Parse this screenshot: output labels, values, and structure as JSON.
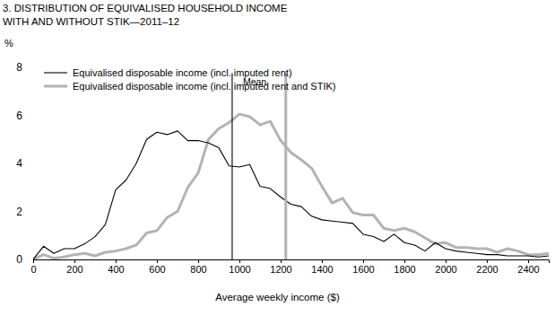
{
  "chart_data": {
    "type": "line",
    "title": [
      "3. DISTRIBUTION OF EQUIVALISED HOUSEHOLD INCOME",
      "WITH AND WITHOUT STIK—2011–12"
    ],
    "x_label": "Average weekly income ($)",
    "y_label": "%",
    "x": [
      0,
      50,
      100,
      150,
      200,
      250,
      300,
      350,
      400,
      450,
      500,
      550,
      600,
      650,
      700,
      750,
      800,
      850,
      900,
      950,
      1000,
      1050,
      1100,
      1150,
      1200,
      1250,
      1300,
      1350,
      1400,
      1450,
      1500,
      1550,
      1600,
      1650,
      1700,
      1750,
      1800,
      1850,
      1900,
      1950,
      2000,
      2050,
      2100,
      2150,
      2200,
      2250,
      2300,
      2350,
      2400,
      2450,
      2500
    ],
    "series": [
      {
        "name": "Equivalised disposable income (incl. imputed rent)",
        "color": "#000000",
        "values": [
          0,
          0.55,
          0.25,
          0.45,
          0.45,
          0.65,
          0.95,
          1.45,
          2.9,
          3.3,
          4.0,
          5.0,
          5.3,
          5.2,
          5.35,
          4.95,
          4.95,
          4.85,
          4.65,
          3.9,
          3.85,
          3.95,
          3.05,
          2.95,
          2.6,
          2.3,
          2.2,
          1.8,
          1.65,
          1.6,
          1.55,
          1.5,
          1.05,
          0.95,
          0.75,
          1.05,
          0.7,
          0.6,
          0.35,
          0.7,
          0.45,
          0.35,
          0.3,
          0.25,
          0.2,
          0.2,
          0.15,
          0.15,
          0.15,
          0.1,
          0.15
        ]
      },
      {
        "name": "Equivalised disposable income (incl. imputed rent and STIK)",
        "color": "#b3b3b3",
        "values": [
          0,
          0.2,
          0.05,
          0.1,
          0.2,
          0.25,
          0.15,
          0.3,
          0.35,
          0.45,
          0.6,
          1.1,
          1.2,
          1.75,
          2.0,
          3.0,
          3.6,
          5.0,
          5.45,
          5.7,
          6.05,
          5.95,
          5.6,
          5.75,
          4.95,
          4.45,
          4.15,
          3.8,
          3.05,
          2.35,
          2.55,
          1.95,
          1.85,
          1.85,
          1.3,
          1.2,
          1.3,
          1.15,
          0.9,
          0.65,
          0.7,
          0.5,
          0.5,
          0.45,
          0.45,
          0.3,
          0.45,
          0.35,
          0.2,
          0.2,
          0.25
        ]
      }
    ],
    "means": {
      "label": "Mean",
      "values": [
        965,
        1225
      ]
    },
    "xlim": [
      0,
      2500
    ],
    "xticks": [
      0,
      200,
      400,
      600,
      800,
      1000,
      1200,
      1400,
      1600,
      1800,
      2000,
      2200,
      2400
    ],
    "ylim": [
      0,
      8
    ],
    "yticks": [
      0,
      2,
      4,
      6,
      8
    ],
    "grid": false,
    "legend": "upper left"
  }
}
